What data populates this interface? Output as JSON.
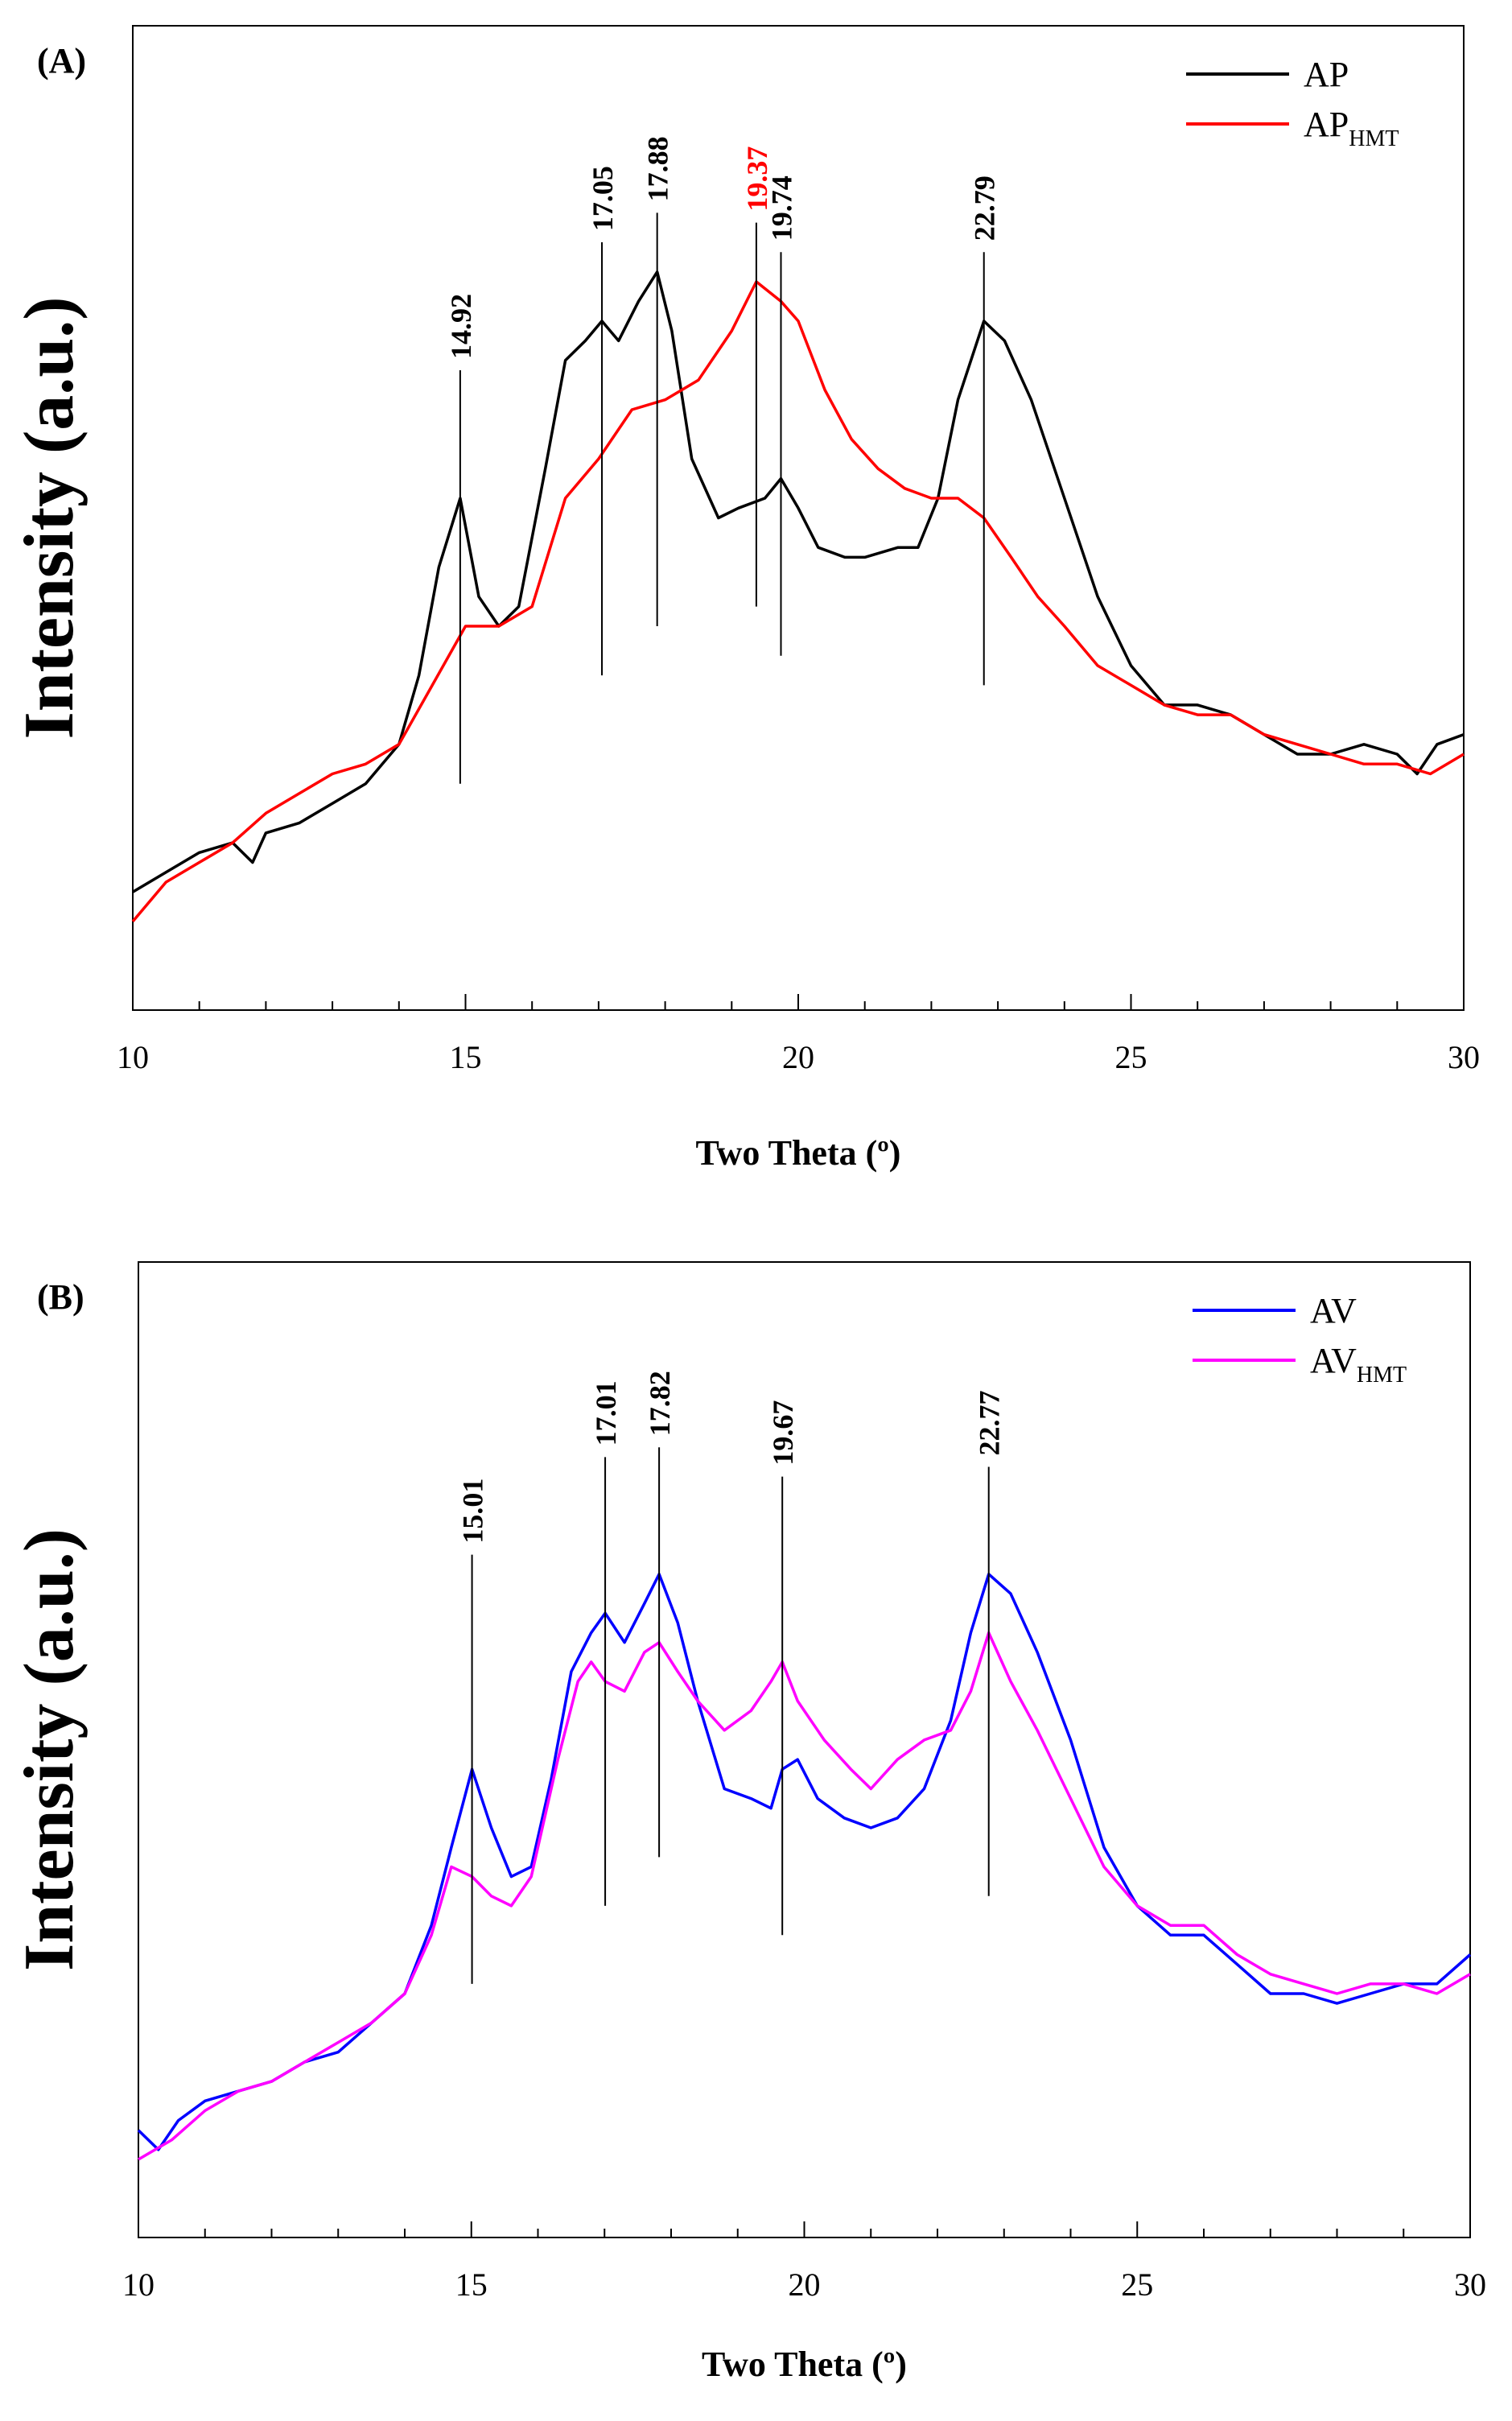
{
  "chart_data": [
    {
      "type": "line",
      "panel_label": "(A)",
      "xlabel": "Two Theta (º)",
      "ylabel": "Intensity (a.u.)",
      "xlim": [
        10,
        30
      ],
      "ylim": [
        0,
        100
      ],
      "x_ticks": [
        "10",
        "15",
        "20",
        "25",
        "30"
      ],
      "legend_position": "top-right",
      "series": [
        {
          "name": "AP",
          "subscript": "",
          "color": "#000000",
          "points": [
            [
              10,
              12
            ],
            [
              10.5,
              14
            ],
            [
              11,
              16
            ],
            [
              11.5,
              17
            ],
            [
              11.8,
              15
            ],
            [
              12,
              18
            ],
            [
              12.5,
              19
            ],
            [
              13,
              21
            ],
            [
              13.5,
              23
            ],
            [
              14,
              27
            ],
            [
              14.3,
              34
            ],
            [
              14.6,
              45
            ],
            [
              14.92,
              52
            ],
            [
              15.2,
              42
            ],
            [
              15.5,
              39
            ],
            [
              15.8,
              41
            ],
            [
              16.2,
              55
            ],
            [
              16.5,
              66
            ],
            [
              16.8,
              68
            ],
            [
              17.05,
              70
            ],
            [
              17.3,
              68
            ],
            [
              17.6,
              72
            ],
            [
              17.88,
              75
            ],
            [
              18.1,
              69
            ],
            [
              18.4,
              56
            ],
            [
              18.8,
              50
            ],
            [
              19.1,
              51
            ],
            [
              19.5,
              52
            ],
            [
              19.74,
              54
            ],
            [
              20,
              51
            ],
            [
              20.3,
              47
            ],
            [
              20.7,
              46
            ],
            [
              21,
              46
            ],
            [
              21.5,
              47
            ],
            [
              21.8,
              47
            ],
            [
              22.1,
              52
            ],
            [
              22.4,
              62
            ],
            [
              22.79,
              70
            ],
            [
              23.1,
              68
            ],
            [
              23.5,
              62
            ],
            [
              24,
              52
            ],
            [
              24.5,
              42
            ],
            [
              25,
              35
            ],
            [
              25.5,
              31
            ],
            [
              26,
              31
            ],
            [
              26.5,
              30
            ],
            [
              27,
              28
            ],
            [
              27.5,
              26
            ],
            [
              28,
              26
            ],
            [
              28.5,
              27
            ],
            [
              29,
              26
            ],
            [
              29.3,
              24
            ],
            [
              29.6,
              27
            ],
            [
              30,
              28
            ]
          ]
        },
        {
          "name": "AP",
          "subscript": "HMT",
          "color": "#ff0000",
          "points": [
            [
              10,
              9
            ],
            [
              10.5,
              13
            ],
            [
              11,
              15
            ],
            [
              11.5,
              17
            ],
            [
              12,
              20
            ],
            [
              12.5,
              22
            ],
            [
              13,
              24
            ],
            [
              13.5,
              25
            ],
            [
              14,
              27
            ],
            [
              14.5,
              33
            ],
            [
              15,
              39
            ],
            [
              15.5,
              39
            ],
            [
              16,
              41
            ],
            [
              16.5,
              52
            ],
            [
              17,
              56
            ],
            [
              17.5,
              61
            ],
            [
              18,
              62
            ],
            [
              18.5,
              64
            ],
            [
              19,
              69
            ],
            [
              19.37,
              74
            ],
            [
              19.74,
              72
            ],
            [
              20,
              70
            ],
            [
              20.4,
              63
            ],
            [
              20.8,
              58
            ],
            [
              21.2,
              55
            ],
            [
              21.6,
              53
            ],
            [
              22,
              52
            ],
            [
              22.4,
              52
            ],
            [
              22.79,
              50
            ],
            [
              23.2,
              46
            ],
            [
              23.6,
              42
            ],
            [
              24,
              39
            ],
            [
              24.5,
              35
            ],
            [
              25,
              33
            ],
            [
              25.5,
              31
            ],
            [
              26,
              30
            ],
            [
              26.5,
              30
            ],
            [
              27,
              28
            ],
            [
              27.5,
              27
            ],
            [
              28,
              26
            ],
            [
              28.5,
              25
            ],
            [
              29,
              25
            ],
            [
              29.5,
              24
            ],
            [
              30,
              26
            ]
          ]
        }
      ],
      "peaks": [
        {
          "x": 14.92,
          "label": "14.92",
          "color": "#000000",
          "top": 65,
          "bottom": 23
        },
        {
          "x": 17.05,
          "label": "17.05",
          "color": "#000000",
          "top": 78,
          "bottom": 34
        },
        {
          "x": 17.88,
          "label": "17.88",
          "color": "#000000",
          "top": 81,
          "bottom": 39
        },
        {
          "x": 19.37,
          "label": "19.37",
          "color": "#ff0000",
          "top": 80,
          "bottom": 41
        },
        {
          "x": 19.74,
          "label": "19.74",
          "color": "#000000",
          "top": 77,
          "bottom": 36
        },
        {
          "x": 22.79,
          "label": "22.79",
          "color": "#000000",
          "top": 77,
          "bottom": 33
        }
      ]
    },
    {
      "type": "line",
      "panel_label": "(B)",
      "xlabel": "Two Theta (º)",
      "ylabel": "Intensity (a.u.)",
      "xlim": [
        10,
        30
      ],
      "ylim": [
        0,
        100
      ],
      "x_ticks": [
        "10",
        "15",
        "20",
        "25",
        "30"
      ],
      "legend_position": "top-right",
      "series": [
        {
          "name": "AV",
          "subscript": "",
          "color": "#0000ff",
          "points": [
            [
              10,
              11
            ],
            [
              10.3,
              9
            ],
            [
              10.6,
              12
            ],
            [
              11,
              14
            ],
            [
              11.5,
              15
            ],
            [
              12,
              16
            ],
            [
              12.5,
              18
            ],
            [
              13,
              19
            ],
            [
              13.5,
              22
            ],
            [
              14,
              25
            ],
            [
              14.4,
              32
            ],
            [
              14.7,
              40
            ],
            [
              15.01,
              48
            ],
            [
              15.3,
              42
            ],
            [
              15.6,
              37
            ],
            [
              15.9,
              38
            ],
            [
              16.2,
              47
            ],
            [
              16.5,
              58
            ],
            [
              16.8,
              62
            ],
            [
              17.01,
              64
            ],
            [
              17.3,
              61
            ],
            [
              17.6,
              65
            ],
            [
              17.82,
              68
            ],
            [
              18.1,
              63
            ],
            [
              18.4,
              55
            ],
            [
              18.8,
              46
            ],
            [
              19.2,
              45
            ],
            [
              19.5,
              44
            ],
            [
              19.67,
              48
            ],
            [
              19.9,
              49
            ],
            [
              20.2,
              45
            ],
            [
              20.6,
              43
            ],
            [
              21,
              42
            ],
            [
              21.4,
              43
            ],
            [
              21.8,
              46
            ],
            [
              22.2,
              53
            ],
            [
              22.5,
              62
            ],
            [
              22.77,
              68
            ],
            [
              23.1,
              66
            ],
            [
              23.5,
              60
            ],
            [
              24,
              51
            ],
            [
              24.5,
              40
            ],
            [
              25,
              34
            ],
            [
              25.5,
              31
            ],
            [
              26,
              31
            ],
            [
              26.5,
              28
            ],
            [
              27,
              25
            ],
            [
              27.5,
              25
            ],
            [
              28,
              24
            ],
            [
              28.5,
              25
            ],
            [
              29,
              26
            ],
            [
              29.5,
              26
            ],
            [
              30,
              29
            ]
          ]
        },
        {
          "name": "AV",
          "subscript": "HMT",
          "color": "#ff00ff",
          "points": [
            [
              10,
              8
            ],
            [
              10.5,
              10
            ],
            [
              11,
              13
            ],
            [
              11.5,
              15
            ],
            [
              12,
              16
            ],
            [
              12.5,
              18
            ],
            [
              13,
              20
            ],
            [
              13.5,
              22
            ],
            [
              14,
              25
            ],
            [
              14.4,
              31
            ],
            [
              14.7,
              38
            ],
            [
              15.01,
              37
            ],
            [
              15.3,
              35
            ],
            [
              15.6,
              34
            ],
            [
              15.9,
              37
            ],
            [
              16.3,
              49
            ],
            [
              16.6,
              57
            ],
            [
              16.8,
              59
            ],
            [
              17.01,
              57
            ],
            [
              17.3,
              56
            ],
            [
              17.6,
              60
            ],
            [
              17.82,
              61
            ],
            [
              18.1,
              58
            ],
            [
              18.4,
              55
            ],
            [
              18.8,
              52
            ],
            [
              19.2,
              54
            ],
            [
              19.5,
              57
            ],
            [
              19.67,
              59
            ],
            [
              19.9,
              55
            ],
            [
              20.3,
              51
            ],
            [
              20.7,
              48
            ],
            [
              21,
              46
            ],
            [
              21.4,
              49
            ],
            [
              21.8,
              51
            ],
            [
              22.2,
              52
            ],
            [
              22.5,
              56
            ],
            [
              22.77,
              62
            ],
            [
              23.1,
              57
            ],
            [
              23.5,
              52
            ],
            [
              24,
              45
            ],
            [
              24.5,
              38
            ],
            [
              25,
              34
            ],
            [
              25.5,
              32
            ],
            [
              26,
              32
            ],
            [
              26.5,
              29
            ],
            [
              27,
              27
            ],
            [
              27.5,
              26
            ],
            [
              28,
              25
            ],
            [
              28.5,
              26
            ],
            [
              29,
              26
            ],
            [
              29.5,
              25
            ],
            [
              30,
              27
            ]
          ]
        }
      ],
      "peaks": [
        {
          "x": 15.01,
          "label": "15.01",
          "color": "#000000",
          "top": 70,
          "bottom": 26
        },
        {
          "x": 17.01,
          "label": "17.01",
          "color": "#000000",
          "top": 80,
          "bottom": 34
        },
        {
          "x": 17.82,
          "label": "17.82",
          "color": "#000000",
          "top": 81,
          "bottom": 39
        },
        {
          "x": 19.67,
          "label": "19.67",
          "color": "#000000",
          "top": 78,
          "bottom": 31
        },
        {
          "x": 22.77,
          "label": "22.77",
          "color": "#000000",
          "top": 79,
          "bottom": 35
        }
      ]
    }
  ]
}
